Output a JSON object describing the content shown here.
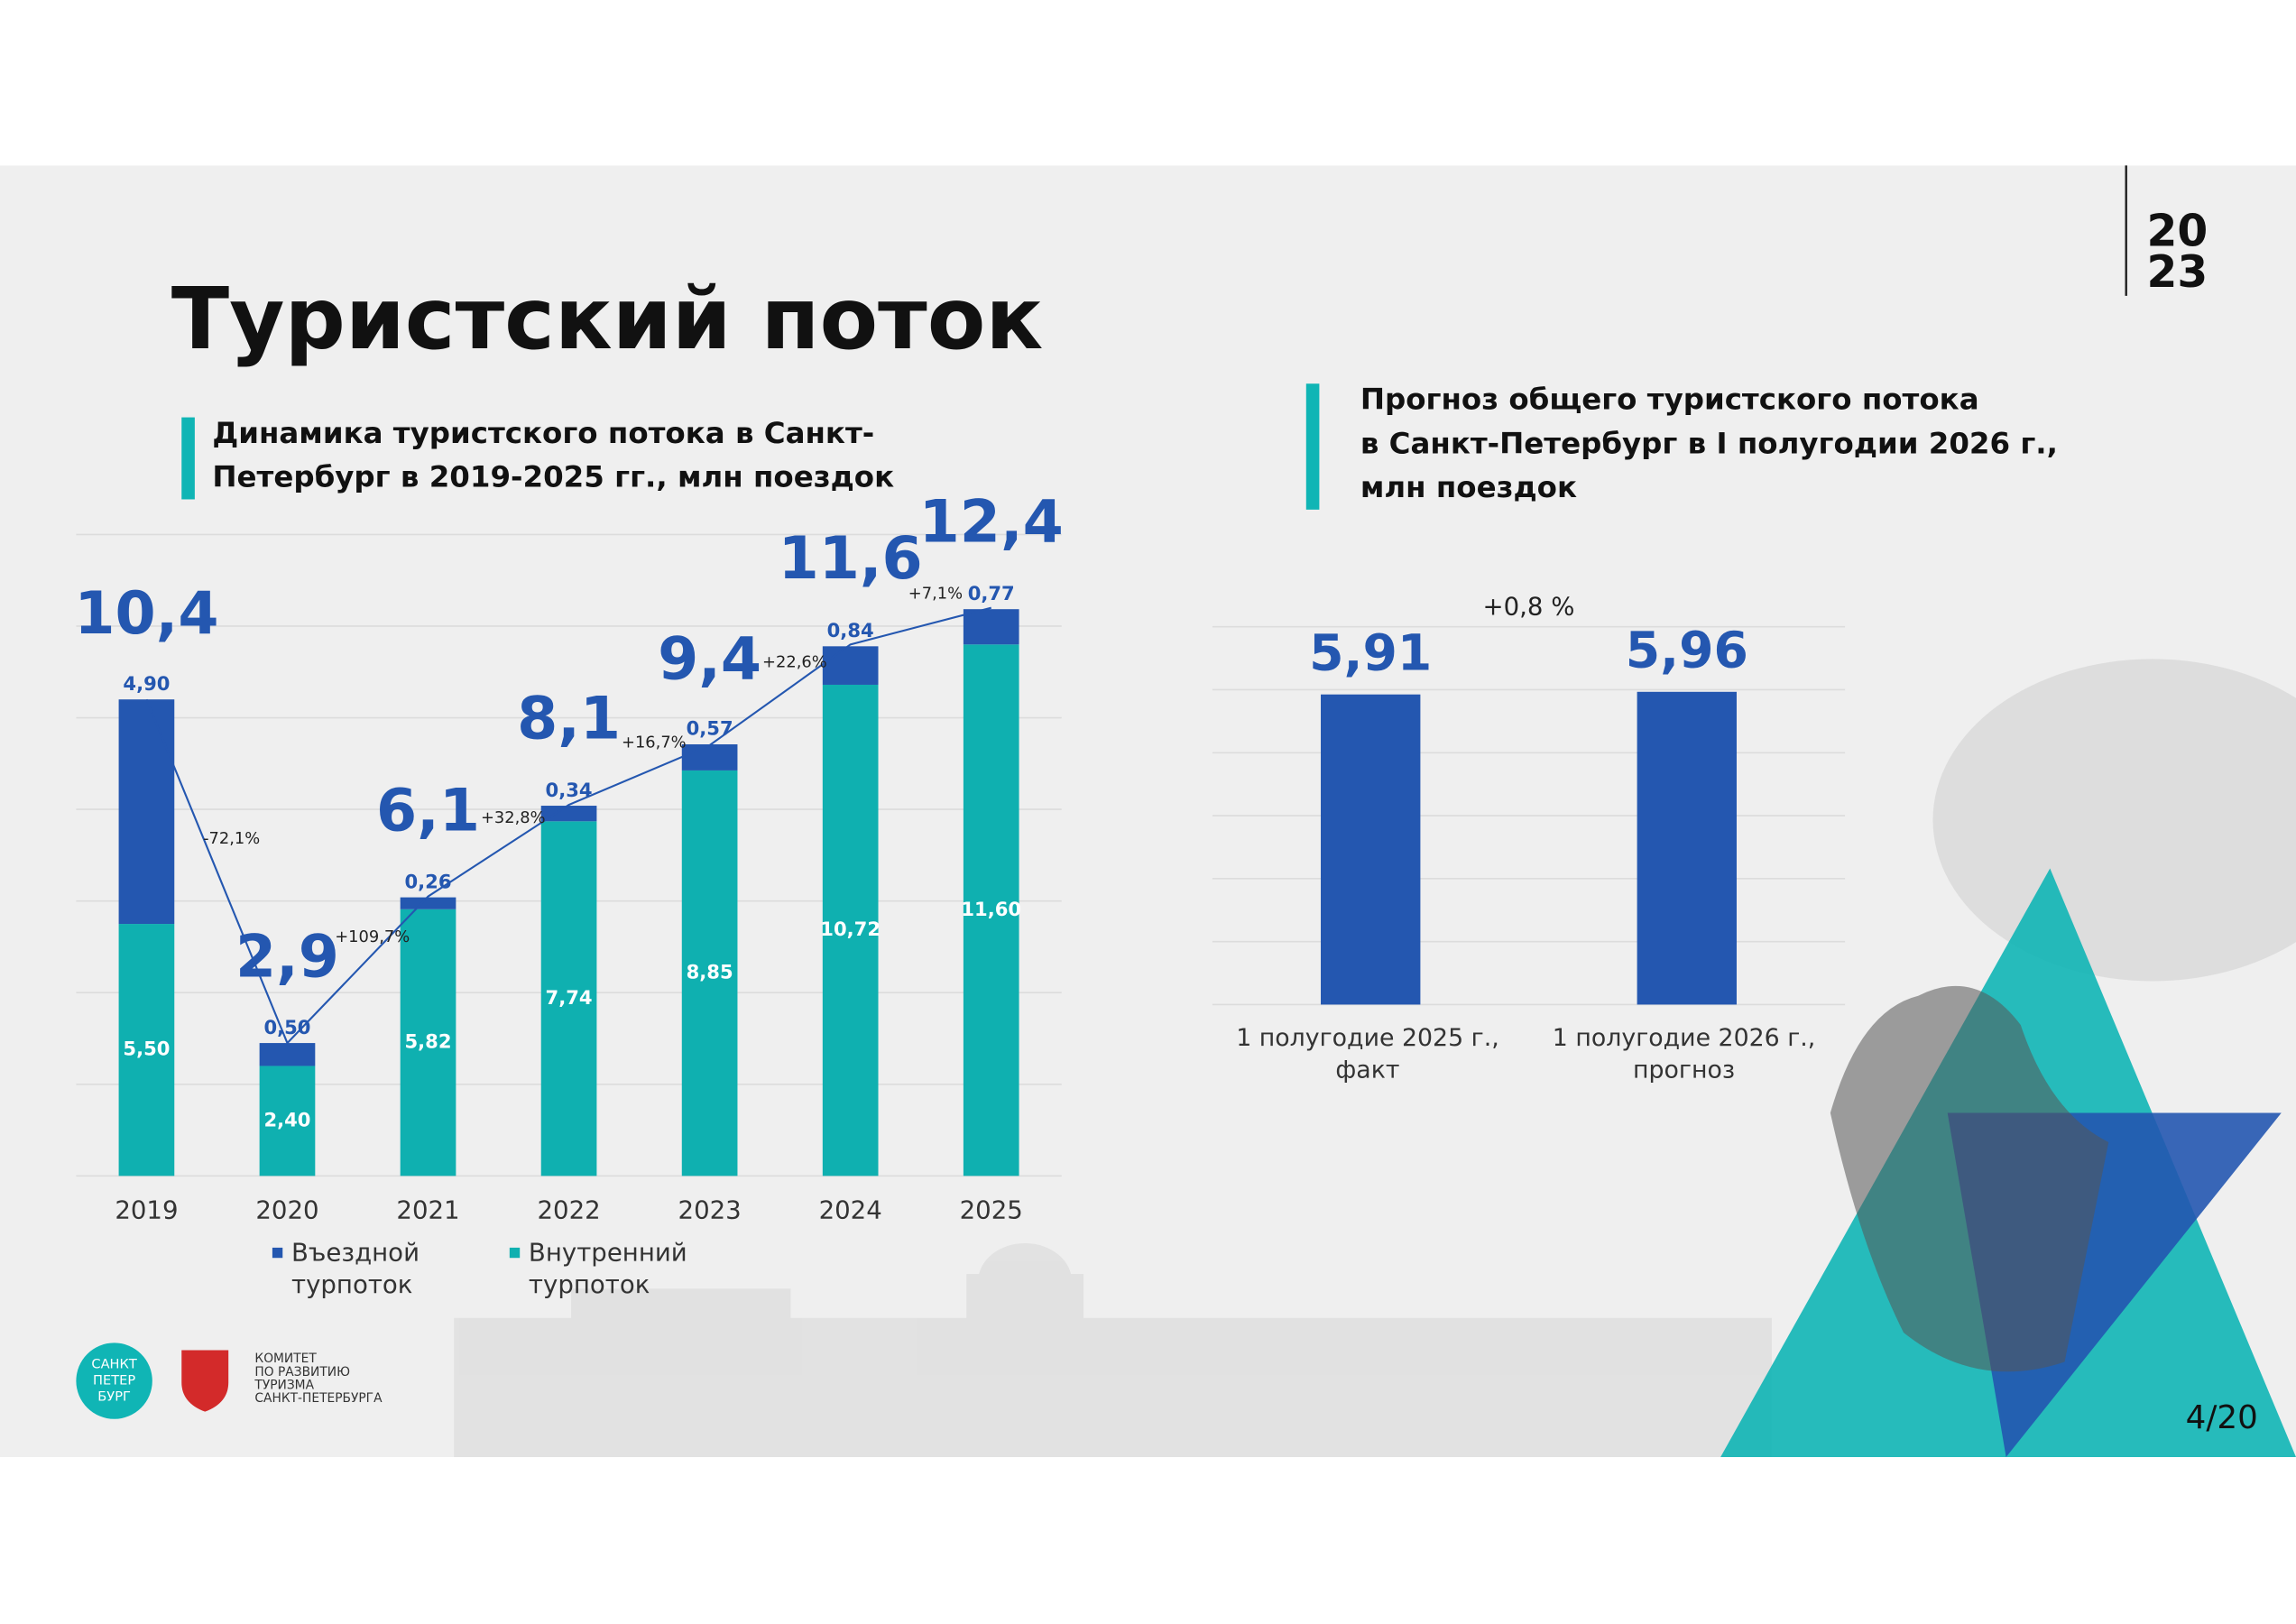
{
  "header": {
    "title": "Туристский поток",
    "page": "4/20",
    "year_logo": [
      "20",
      "23"
    ]
  },
  "footer": {
    "city_logo": [
      "САНКТ",
      "ПЕТЕР",
      "БУРГ"
    ],
    "committee": [
      "КОМИТЕТ",
      "ПО РАЗВИТИЮ",
      "ТУРИЗМА",
      "САНКТ-ПЕТЕРБУРГА"
    ]
  },
  "chart_data": [
    {
      "type": "stacked-bar",
      "title": [
        "Динамика туристского потока в Санкт-",
        "Петербург в 2019-2025 гг., млн поездок"
      ],
      "categories": [
        "2019",
        "2020",
        "2021",
        "2022",
        "2023",
        "2024",
        "2025"
      ],
      "series": [
        {
          "name": "Въездной турпоток",
          "color": "#2457b0",
          "values": [
            4.9,
            0.5,
            0.26,
            0.34,
            0.57,
            0.84,
            0.77
          ],
          "value_labels": [
            "4,90",
            "0,50",
            "0,26",
            "0,34",
            "0,57",
            "0,84",
            "0,77"
          ]
        },
        {
          "name": "Внутренний турпоток",
          "color": "#0fb0b0",
          "values": [
            5.5,
            2.4,
            5.82,
            7.74,
            8.85,
            10.72,
            11.6
          ],
          "value_labels": [
            "5,50",
            "2,40",
            "5,82",
            "7,74",
            "8,85",
            "10,72",
            "11,60"
          ]
        }
      ],
      "totals": {
        "values": [
          10.4,
          2.9,
          6.1,
          8.1,
          9.4,
          11.6,
          12.4
        ],
        "value_labels": [
          "10,4",
          "2,9",
          "6,1",
          "8,1",
          "9,4",
          "11,6",
          "12,4"
        ]
      },
      "changes": {
        "values": [
          -72.1,
          109.7,
          32.8,
          16.7,
          22.6,
          7.1
        ],
        "value_labels": [
          "-72,1%",
          "+109,7%",
          "+32,8%",
          "+16,7%",
          "+22,6%",
          "+7,1%"
        ]
      },
      "ylim": [
        0,
        14
      ],
      "yticks": [
        0,
        2,
        4,
        6,
        8,
        10,
        12,
        14
      ],
      "grid": true
    },
    {
      "type": "bar",
      "title": [
        "Прогноз общего туристского потока",
        "в Санкт-Петербург в I полугодии 2026 г.,",
        "млн поездок"
      ],
      "categories": [
        "1 полугодие 2025 г., факт",
        "1 полугодие 2026 г., прогноз"
      ],
      "values": [
        5.91,
        5.96
      ],
      "value_labels": [
        "5,91",
        "5,96"
      ],
      "color": "#2457b0",
      "change": {
        "value": 0.8,
        "label": "+0,8 %"
      },
      "ylim": [
        0,
        7.2
      ],
      "yticks": [
        0,
        1.2,
        2.4,
        3.6,
        4.8,
        6.0,
        7.2
      ],
      "grid": true
    }
  ]
}
